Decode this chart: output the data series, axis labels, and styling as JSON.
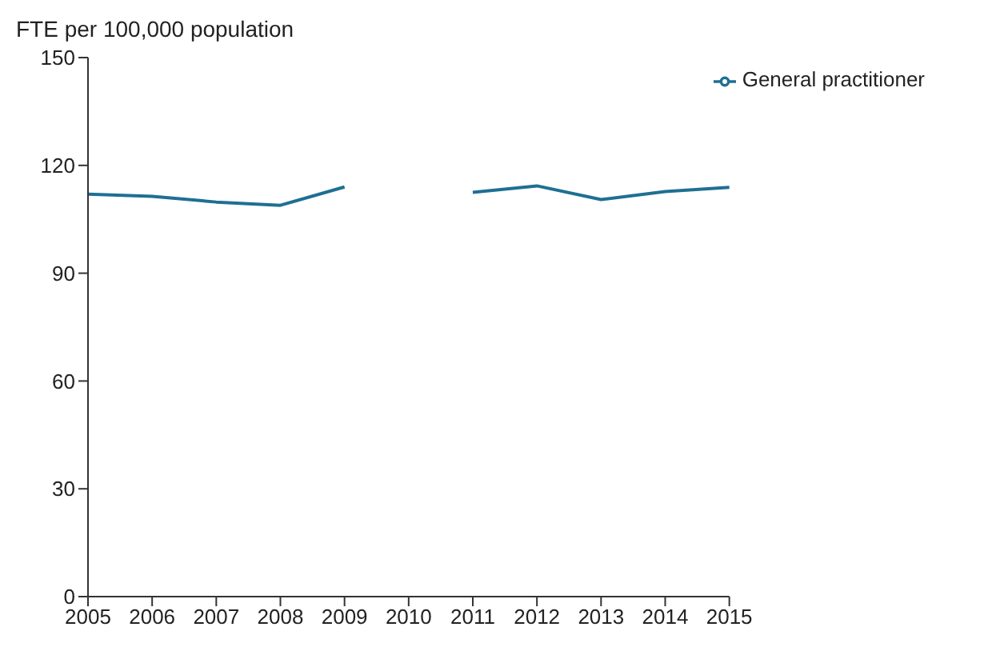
{
  "chart_data": {
    "type": "line",
    "ylabel": "FTE per 100,000 population",
    "categories": [
      "2005",
      "2006",
      "2007",
      "2008",
      "2009",
      "2010",
      "2011",
      "2012",
      "2013",
      "2014",
      "2015"
    ],
    "series": [
      {
        "name": "General practitioner",
        "color": "#1f6f93",
        "values": [
          112,
          111.4,
          109.8,
          108.9,
          114,
          null,
          112.5,
          114.3,
          110.5,
          112.7,
          113.9
        ]
      }
    ],
    "ylim": [
      0,
      150
    ],
    "yticks": [
      0,
      30,
      60,
      90,
      120,
      150
    ],
    "grid": false,
    "legend": "top right",
    "marker": "none",
    "line_style": "solid"
  }
}
